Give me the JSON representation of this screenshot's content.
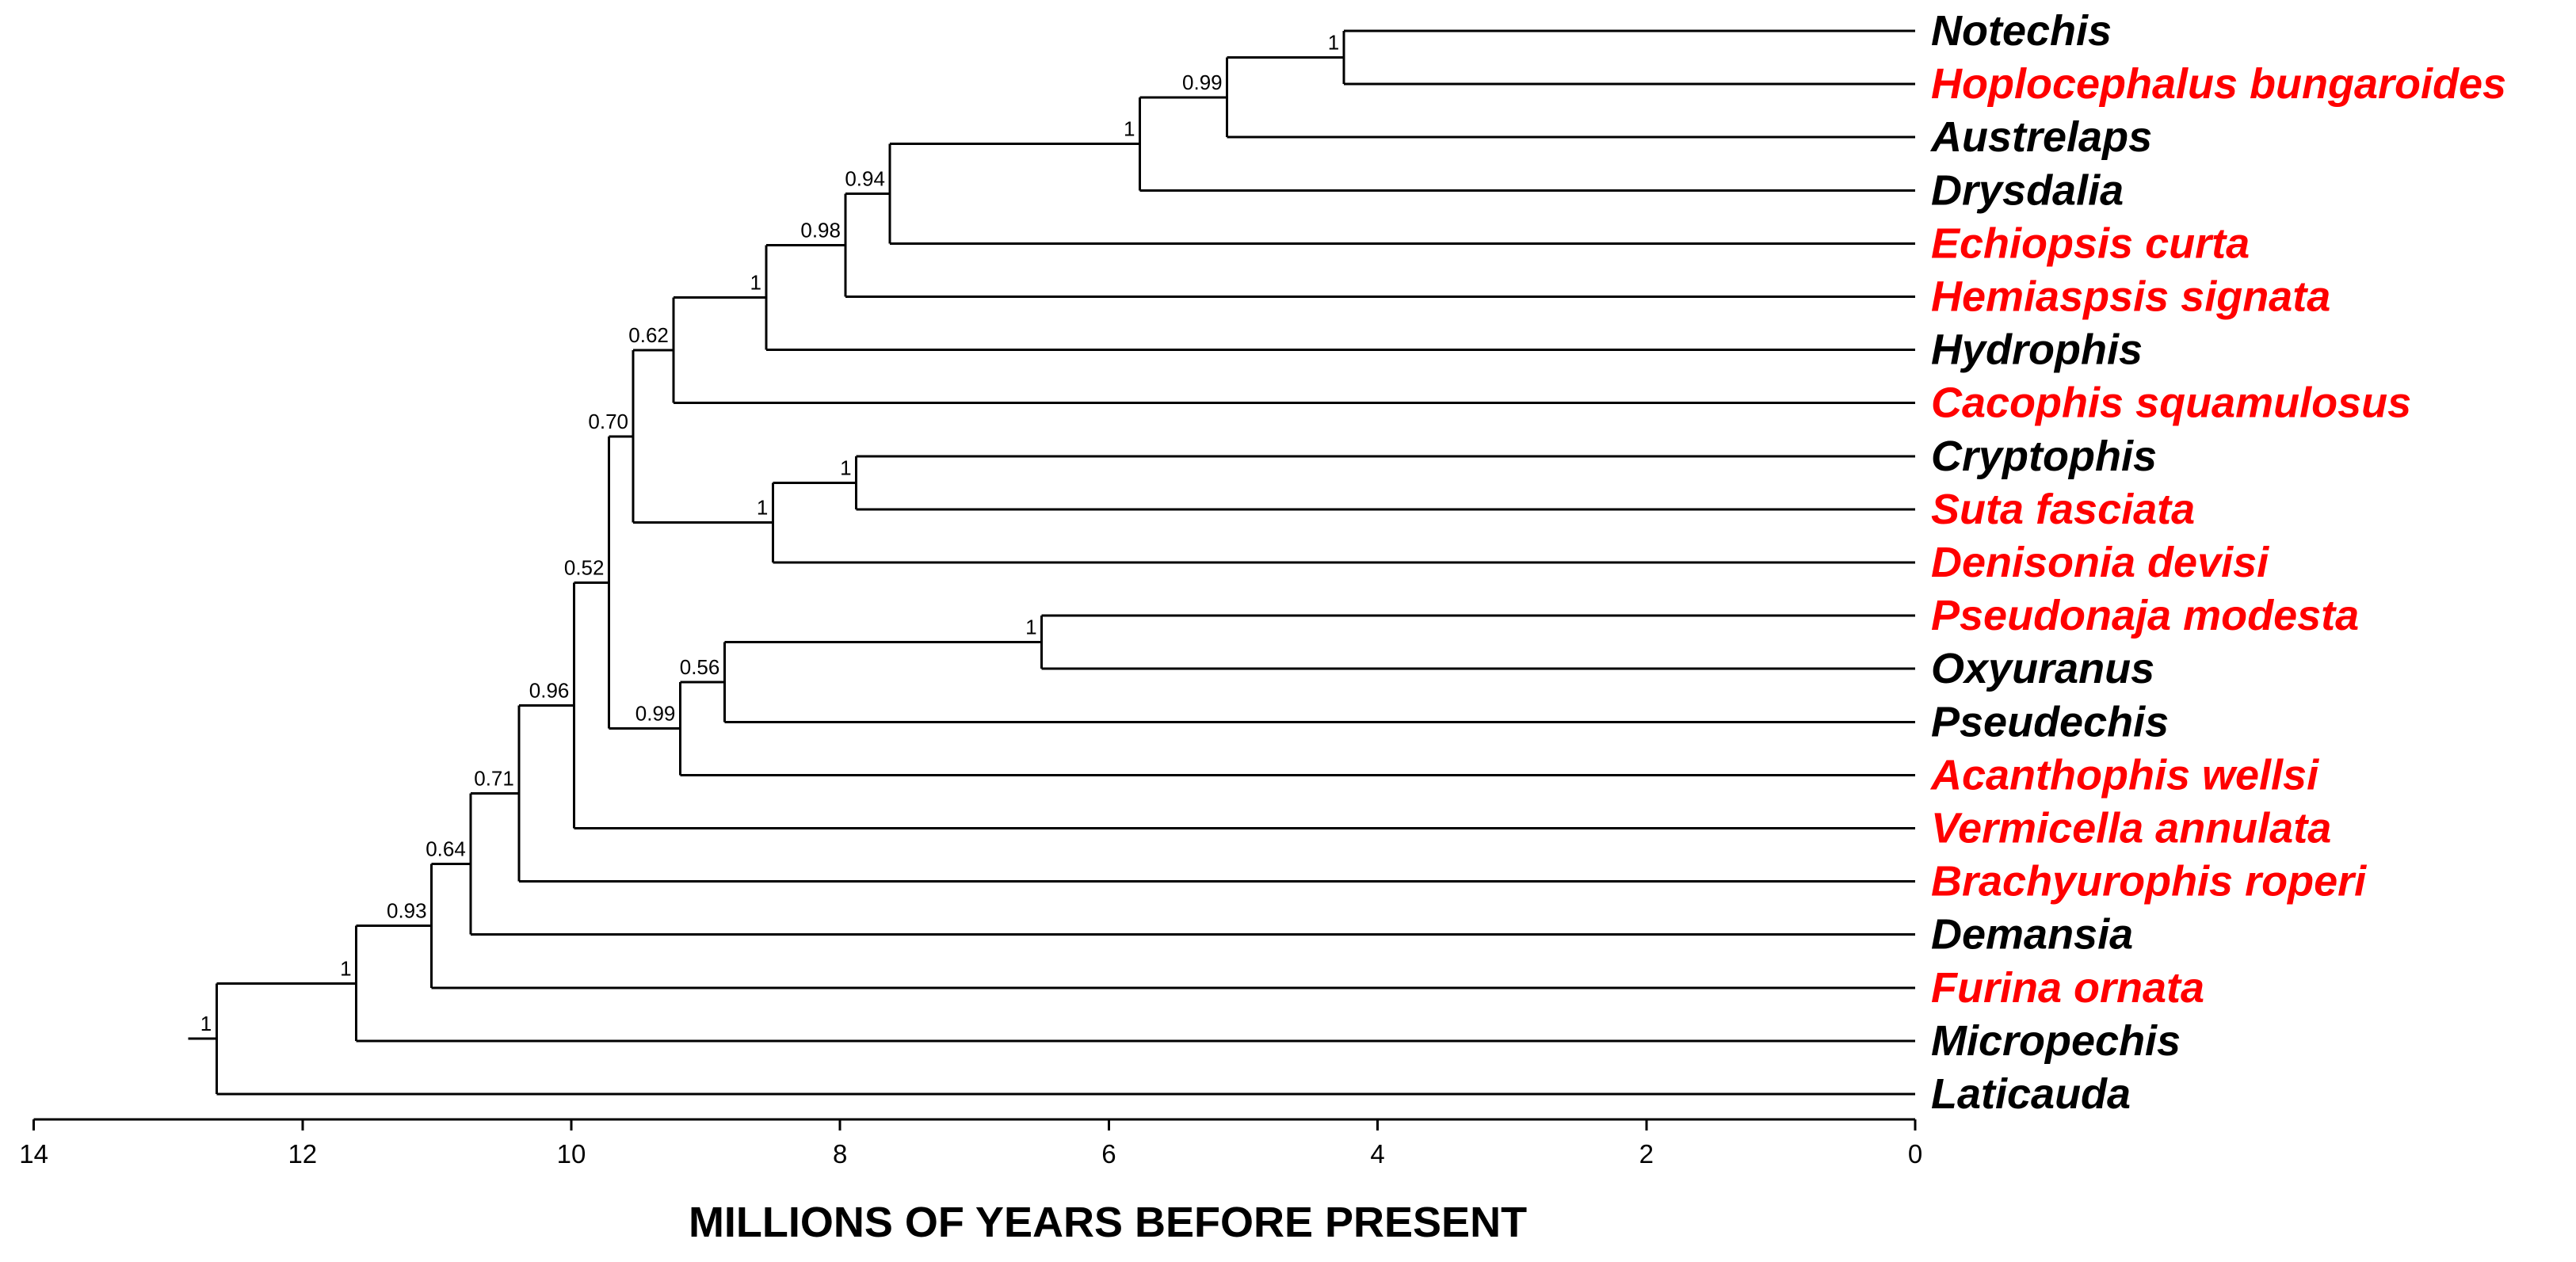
{
  "colors": {
    "highlight": "#ff0000",
    "default": "#000000"
  },
  "axis": {
    "title": "MILLIONS OF YEARS BEFORE PRESENT",
    "ticks": [
      "14",
      "12",
      "10",
      "8",
      "6",
      "4",
      "2",
      "0"
    ]
  },
  "taxa": [
    {
      "name": "Notechis",
      "highlight": false
    },
    {
      "name": "Hoplocephalus bungaroides",
      "highlight": true
    },
    {
      "name": "Austrelaps",
      "highlight": false
    },
    {
      "name": "Drysdalia",
      "highlight": false
    },
    {
      "name": "Echiopsis curta",
      "highlight": true
    },
    {
      "name": "Hemiaspsis signata",
      "highlight": true
    },
    {
      "name": "Hydrophis",
      "highlight": false
    },
    {
      "name": "Cacophis squamulosus",
      "highlight": true
    },
    {
      "name": "Cryptophis",
      "highlight": false
    },
    {
      "name": "Suta fasciata",
      "highlight": true
    },
    {
      "name": "Denisonia devisi",
      "highlight": true
    },
    {
      "name": "Pseudonaja modesta",
      "highlight": true
    },
    {
      "name": "Oxyuranus",
      "highlight": false
    },
    {
      "name": "Pseudechis",
      "highlight": false
    },
    {
      "name": "Acanthophis wellsi",
      "highlight": true
    },
    {
      "name": "Vermicella annulata",
      "highlight": true
    },
    {
      "name": "Brachyurophis roperi",
      "highlight": true
    },
    {
      "name": "Demansia",
      "highlight": false
    },
    {
      "name": "Furina ornata",
      "highlight": true
    },
    {
      "name": "Micropechis",
      "highlight": false
    },
    {
      "name": "Laticauda",
      "highlight": false
    }
  ],
  "nodes": [
    {
      "id": "n1",
      "age": 4.25,
      "support": "1",
      "children": [
        0,
        1
      ]
    },
    {
      "id": "n2",
      "age": 5.12,
      "support": "0.99",
      "children": [
        "n1",
        2
      ]
    },
    {
      "id": "n3",
      "age": 5.77,
      "support": "1",
      "children": [
        "n2",
        3
      ]
    },
    {
      "id": "n4",
      "age": 7.63,
      "support": "0.94",
      "children": [
        "n3",
        4
      ]
    },
    {
      "id": "n5",
      "age": 7.96,
      "support": "0.98",
      "children": [
        "n4",
        5
      ]
    },
    {
      "id": "n6",
      "age": 8.55,
      "support": "1",
      "children": [
        "n5",
        6
      ]
    },
    {
      "id": "n7",
      "age": 9.24,
      "support": "0.62",
      "children": [
        "n6",
        7
      ]
    },
    {
      "id": "n8",
      "age": 7.88,
      "support": "1",
      "children": [
        8,
        9
      ]
    },
    {
      "id": "n9",
      "age": 8.5,
      "support": "1",
      "children": [
        "n8",
        10
      ]
    },
    {
      "id": "n10",
      "age": 9.54,
      "support": "0.70",
      "children": [
        "n7",
        "n9"
      ]
    },
    {
      "id": "n11",
      "age": 6.5,
      "support": "1",
      "children": [
        11,
        12
      ]
    },
    {
      "id": "n12",
      "age": 8.86,
      "support": "0.56",
      "children": [
        "n11",
        13
      ]
    },
    {
      "id": "n13",
      "age": 9.19,
      "support": "0.99",
      "children": [
        "n12",
        14
      ]
    },
    {
      "id": "n14",
      "age": 9.72,
      "support": "0.52",
      "children": [
        "n10",
        "n13"
      ]
    },
    {
      "id": "n15",
      "age": 9.98,
      "support": "0.96",
      "children": [
        "n14",
        15
      ]
    },
    {
      "id": "n16",
      "age": 10.39,
      "support": "0.71",
      "children": [
        "n15",
        16
      ]
    },
    {
      "id": "n17",
      "age": 10.75,
      "support": "0.64",
      "children": [
        "n16",
        17
      ]
    },
    {
      "id": "n18",
      "age": 11.04,
      "support": "0.93",
      "children": [
        "n17",
        18
      ]
    },
    {
      "id": "n19",
      "age": 11.6,
      "support": "1",
      "children": [
        "n18",
        19
      ]
    },
    {
      "id": "n20",
      "age": 12.64,
      "support": "1",
      "children": [
        "n19",
        20
      ]
    }
  ],
  "root_stem_age": 12.85
}
